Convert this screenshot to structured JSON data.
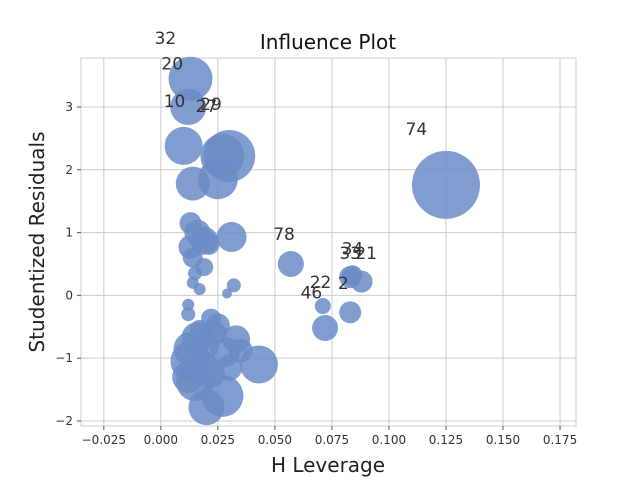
{
  "chart_data": {
    "type": "scatter",
    "title": "Influence Plot",
    "xlabel": "H Leverage",
    "ylabel": "Studentized Residuals",
    "xlim": [
      -0.035,
      0.182
    ],
    "ylim": [
      -2.08,
      3.78
    ],
    "xticks": [
      "−0.025",
      "0.000",
      "0.025",
      "0.050",
      "0.075",
      "0.100",
      "0.125",
      "0.150",
      "0.175"
    ],
    "yticks": [
      "−2",
      "−1",
      "0",
      "1",
      "2",
      "3"
    ],
    "grid": true,
    "marker_color": "#6b8cc7",
    "marker_alpha": 0.85,
    "points": [
      {
        "x": 0.125,
        "y": 1.76,
        "r": 34
      },
      {
        "x": 0.013,
        "y": 3.45,
        "r": 22
      },
      {
        "x": 0.012,
        "y": 3.0,
        "r": 18
      },
      {
        "x": 0.03,
        "y": 2.22,
        "r": 26
      },
      {
        "x": 0.027,
        "y": 2.22,
        "r": 22
      },
      {
        "x": 0.01,
        "y": 2.38,
        "r": 19
      },
      {
        "x": 0.025,
        "y": 1.85,
        "r": 20
      },
      {
        "x": 0.014,
        "y": 1.78,
        "r": 17
      },
      {
        "x": 0.031,
        "y": 0.93,
        "r": 15
      },
      {
        "x": 0.057,
        "y": 0.5,
        "r": 13
      },
      {
        "x": 0.013,
        "y": 1.15,
        "r": 11
      },
      {
        "x": 0.016,
        "y": 1.0,
        "r": 13
      },
      {
        "x": 0.019,
        "y": 0.87,
        "r": 14
      },
      {
        "x": 0.021,
        "y": 0.82,
        "r": 11
      },
      {
        "x": 0.013,
        "y": 0.77,
        "r": 12
      },
      {
        "x": 0.014,
        "y": 0.6,
        "r": 10
      },
      {
        "x": 0.019,
        "y": 0.45,
        "r": 9
      },
      {
        "x": 0.015,
        "y": 0.35,
        "r": 7
      },
      {
        "x": 0.032,
        "y": 0.16,
        "r": 7
      },
      {
        "x": 0.029,
        "y": 0.03,
        "r": 5
      },
      {
        "x": 0.017,
        "y": 0.1,
        "r": 6
      },
      {
        "x": 0.014,
        "y": 0.2,
        "r": 6
      },
      {
        "x": 0.083,
        "y": 0.29,
        "r": 11
      },
      {
        "x": 0.084,
        "y": 0.32,
        "r": 10
      },
      {
        "x": 0.088,
        "y": 0.22,
        "r": 11
      },
      {
        "x": 0.071,
        "y": -0.17,
        "r": 8
      },
      {
        "x": 0.083,
        "y": -0.27,
        "r": 11
      },
      {
        "x": 0.072,
        "y": -0.52,
        "r": 13
      },
      {
        "x": 0.012,
        "y": -0.15,
        "r": 6
      },
      {
        "x": 0.012,
        "y": -0.3,
        "r": 7
      },
      {
        "x": 0.022,
        "y": -0.37,
        "r": 10
      },
      {
        "x": 0.025,
        "y": -0.48,
        "r": 12
      },
      {
        "x": 0.033,
        "y": -0.7,
        "r": 14
      },
      {
        "x": 0.016,
        "y": -0.68,
        "r": 16
      },
      {
        "x": 0.013,
        "y": -0.85,
        "r": 17
      },
      {
        "x": 0.02,
        "y": -0.8,
        "r": 13
      },
      {
        "x": 0.028,
        "y": -0.9,
        "r": 15
      },
      {
        "x": 0.035,
        "y": -0.88,
        "r": 12
      },
      {
        "x": 0.043,
        "y": -1.1,
        "r": 19
      },
      {
        "x": 0.013,
        "y": -1.05,
        "r": 20
      },
      {
        "x": 0.018,
        "y": -1.15,
        "r": 17
      },
      {
        "x": 0.012,
        "y": -1.3,
        "r": 16
      },
      {
        "x": 0.015,
        "y": -1.38,
        "r": 19
      },
      {
        "x": 0.022,
        "y": -1.25,
        "r": 14
      },
      {
        "x": 0.03,
        "y": -1.15,
        "r": 13
      },
      {
        "x": 0.027,
        "y": -1.6,
        "r": 21
      },
      {
        "x": 0.02,
        "y": -1.78,
        "r": 18
      },
      {
        "x": 0.017,
        "y": -0.55,
        "r": 10
      },
      {
        "x": 0.024,
        "y": -0.6,
        "r": 11
      }
    ],
    "labels": [
      {
        "text": "32",
        "x": 0.002,
        "y": 4.0
      },
      {
        "text": "20",
        "x": 0.005,
        "y": 3.6
      },
      {
        "text": "10",
        "x": 0.006,
        "y": 3.0
      },
      {
        "text": "27",
        "x": 0.02,
        "y": 2.92
      },
      {
        "text": "29",
        "x": 0.022,
        "y": 2.95
      },
      {
        "text": "74",
        "x": 0.112,
        "y": 2.55
      },
      {
        "text": "78",
        "x": 0.054,
        "y": 0.88
      },
      {
        "text": "34",
        "x": 0.084,
        "y": 0.65
      },
      {
        "text": "33",
        "x": 0.083,
        "y": 0.58
      },
      {
        "text": "21",
        "x": 0.09,
        "y": 0.58
      },
      {
        "text": "22",
        "x": 0.07,
        "y": 0.12
      },
      {
        "text": "2",
        "x": 0.08,
        "y": 0.1
      },
      {
        "text": "46",
        "x": 0.066,
        "y": -0.05
      }
    ]
  }
}
